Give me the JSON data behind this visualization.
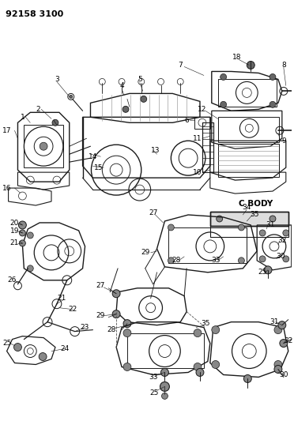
{
  "title": "92158 3100",
  "bg": "#ffffff",
  "lc": "#1a1a1a",
  "fig_w": 3.72,
  "fig_h": 5.33,
  "dpi": 100
}
